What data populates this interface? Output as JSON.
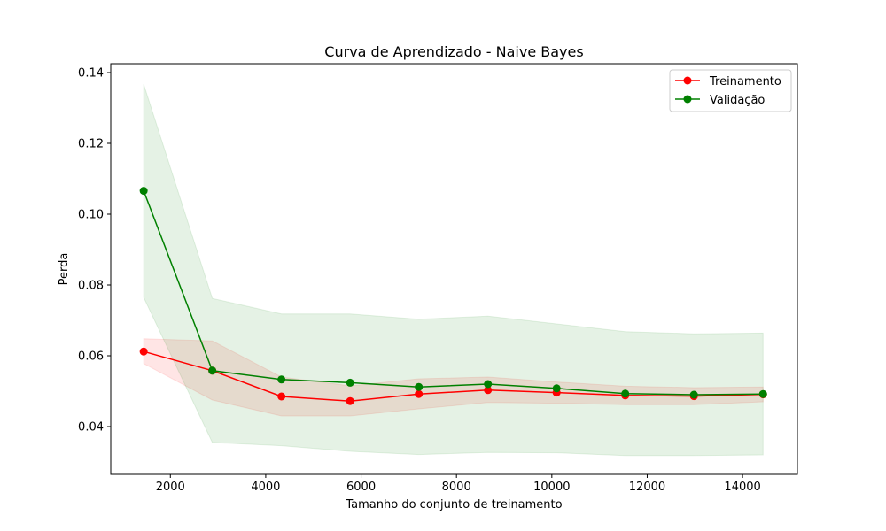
{
  "chart_data": {
    "type": "line",
    "title": "Curva de Aprendizado - Naive Bayes",
    "xlabel": "Tamanho do conjunto de treinamento",
    "ylabel": "Perda",
    "xlim": [
      750,
      15150
    ],
    "ylim": [
      0.0265,
      0.1425
    ],
    "xticks": [
      2000,
      4000,
      6000,
      8000,
      10000,
      12000,
      14000
    ],
    "yticks": [
      0.04,
      0.06,
      0.08,
      0.1,
      0.12,
      0.14
    ],
    "xtick_labels": [
      "2000",
      "4000",
      "6000",
      "8000",
      "10000",
      "12000",
      "14000"
    ],
    "ytick_labels": [
      "0.04",
      "0.06",
      "0.08",
      "0.10",
      "0.12",
      "0.14"
    ],
    "grid": false,
    "legend_position": "top-right",
    "x": [
      1440,
      2880,
      4330,
      5770,
      7210,
      8660,
      10100,
      11540,
      12980,
      14430
    ],
    "series": [
      {
        "name": "Treinamento",
        "color": "#ff0000",
        "band_color": "#ff0000",
        "values": [
          0.0612,
          0.0558,
          0.0485,
          0.0472,
          0.0492,
          0.0503,
          0.0496,
          0.0488,
          0.0486,
          0.0491
        ],
        "lower": [
          0.0578,
          0.0475,
          0.043,
          0.043,
          0.045,
          0.0468,
          0.0466,
          0.0462,
          0.0462,
          0.047
        ],
        "upper": [
          0.0648,
          0.0642,
          0.054,
          0.0515,
          0.0535,
          0.054,
          0.0526,
          0.0514,
          0.051,
          0.0512
        ]
      },
      {
        "name": "Validação",
        "color": "#008000",
        "band_color": "#008000",
        "values": [
          0.1066,
          0.0558,
          0.0533,
          0.0524,
          0.0512,
          0.052,
          0.0508,
          0.0493,
          0.049,
          0.0492
        ],
        "lower": [
          0.0765,
          0.0355,
          0.0346,
          0.033,
          0.0321,
          0.0327,
          0.0326,
          0.0318,
          0.0318,
          0.032
        ],
        "upper": [
          0.1367,
          0.0762,
          0.0718,
          0.0718,
          0.0703,
          0.0712,
          0.069,
          0.0668,
          0.0662,
          0.0664
        ]
      }
    ]
  }
}
